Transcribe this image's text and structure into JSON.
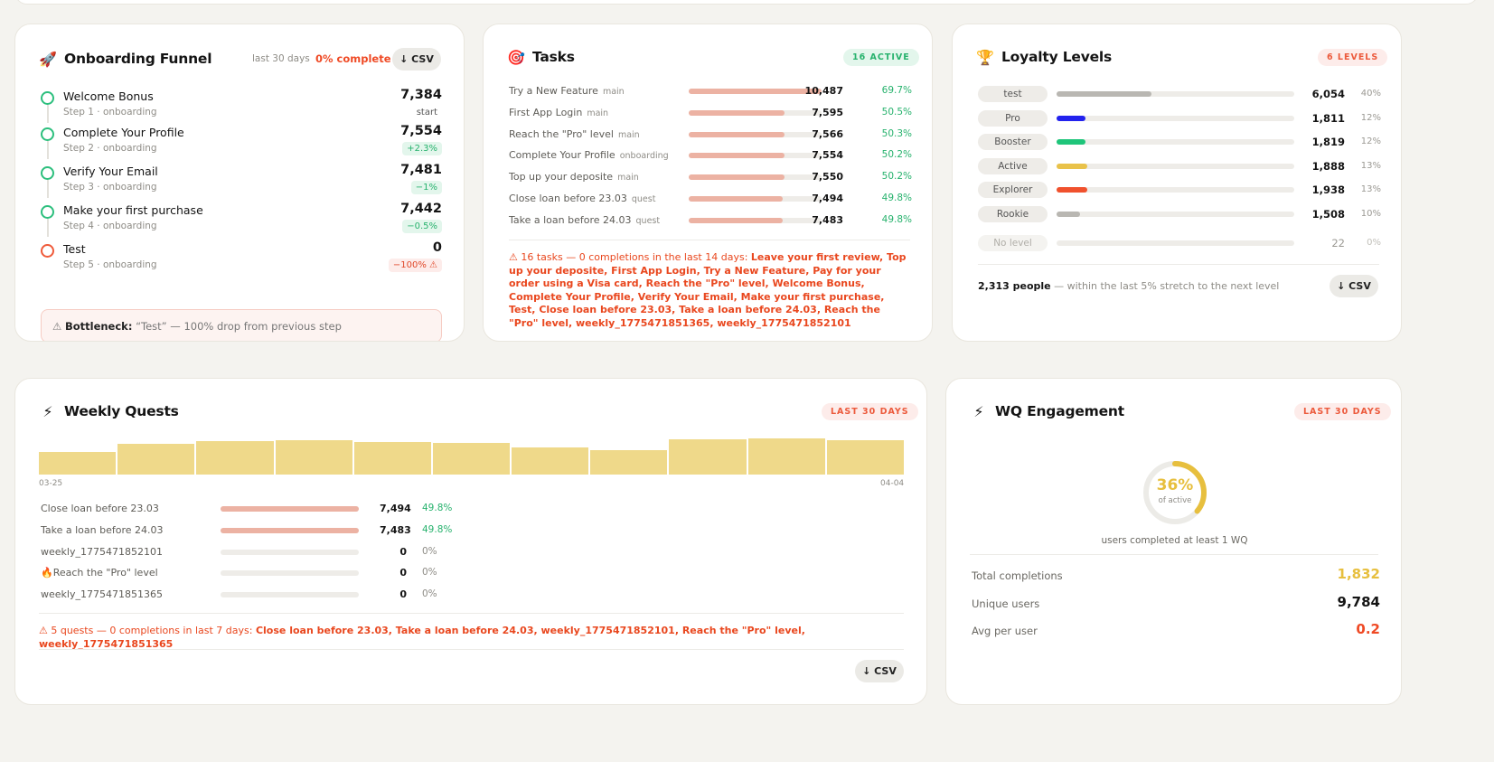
{
  "funnel": {
    "title": "Onboarding Funnel",
    "period": "last 30 days",
    "complete": "0% complete",
    "csv": "↓ CSV",
    "steps": [
      {
        "name": "Welcome Bonus",
        "sub": "Step 1 · onboarding",
        "value": "7,384",
        "delta": "start"
      },
      {
        "name": "Complete Your Profile",
        "sub": "Step 2 · onboarding",
        "value": "7,554",
        "delta": "+2.3%"
      },
      {
        "name": "Verify Your Email",
        "sub": "Step 3 · onboarding",
        "value": "7,481",
        "delta": "−1%"
      },
      {
        "name": "Make your first purchase",
        "sub": "Step 4 · onboarding",
        "value": "7,442",
        "delta": "−0.5%"
      },
      {
        "name": "Test",
        "sub": "Step 5 · onboarding",
        "value": "0",
        "delta": "−100% ⚠"
      }
    ],
    "bottleneck_label": "Bottleneck:",
    "bottleneck_text": "“Test” — 100% drop from previous step"
  },
  "tasks": {
    "title": "Tasks",
    "badge": "16 ACTIVE",
    "rows": [
      {
        "name": "Try a New Feature",
        "tag": "main",
        "value": "10,487",
        "pct": "69.7%",
        "fill": 1.0
      },
      {
        "name": "First App Login",
        "tag": "main",
        "value": "7,595",
        "pct": "50.5%",
        "fill": 0.72
      },
      {
        "name": "Reach the \"Pro\" level",
        "tag": "main",
        "value": "7,566",
        "pct": "50.3%",
        "fill": 0.72
      },
      {
        "name": "Complete Your Profile",
        "tag": "onboarding",
        "value": "7,554",
        "pct": "50.2%",
        "fill": 0.72
      },
      {
        "name": "Top up your deposite",
        "tag": "main",
        "value": "7,550",
        "pct": "50.2%",
        "fill": 0.72
      },
      {
        "name": "Close loan before 23.03",
        "tag": "quest",
        "value": "7,494",
        "pct": "49.8%",
        "fill": 0.71
      },
      {
        "name": "Take a loan before 24.03",
        "tag": "quest",
        "value": "7,483",
        "pct": "49.8%",
        "fill": 0.71
      }
    ],
    "warning_head": "⚠ 16 tasks — 0 completions in the last 14 days:",
    "warning_list": "Leave your first review, Top up your deposite, First App Login, Try a New Feature, Pay for your order using a Visa card, Reach the \"Pro\" level, Welcome Bonus, Complete Your Profile, Verify Your Email, Make your first purchase, Test, Close loan before 23.03, Take a loan before 24.03, Reach the \"Pro\" level, weekly_1775471851365, weekly_1775471852101"
  },
  "loyalty": {
    "title": "Loyalty Levels",
    "badge": "6 LEVELS",
    "levels": [
      {
        "name": "test",
        "value": "6,054",
        "pct": "40%",
        "fill": 0.4,
        "color": "#b9b7b2"
      },
      {
        "name": "Pro",
        "value": "1,811",
        "pct": "12%",
        "fill": 0.12,
        "color": "#2222ee"
      },
      {
        "name": "Booster",
        "value": "1,819",
        "pct": "12%",
        "fill": 0.12,
        "color": "#1fc57a"
      },
      {
        "name": "Active",
        "value": "1,888",
        "pct": "13%",
        "fill": 0.13,
        "color": "#e9c24a"
      },
      {
        "name": "Explorer",
        "value": "1,938",
        "pct": "13%",
        "fill": 0.13,
        "color": "#f0512d"
      },
      {
        "name": "Rookie",
        "value": "1,508",
        "pct": "10%",
        "fill": 0.1,
        "color": "#b9b7b2"
      },
      {
        "name": "No level",
        "value": "22",
        "pct": "0%",
        "fill": 0,
        "color": "#b9b7b2"
      }
    ],
    "people": "2,313 people",
    "people_note": "— within the last 5% stretch to the next level",
    "csv": "↓ CSV"
  },
  "weekly": {
    "title": "Weekly Quests",
    "badge": "LAST 30 DAYS",
    "x_start": "03-25",
    "x_end": "04-04",
    "quests": [
      {
        "name": "Close loan before 23.03",
        "value": "7,494",
        "pct": "49.8%",
        "fill": 1.0
      },
      {
        "name": "Take a loan before 24.03",
        "value": "7,483",
        "pct": "49.8%",
        "fill": 1.0
      },
      {
        "name": "weekly_1775471852101",
        "value": "0",
        "pct": "0%",
        "fill": 0
      },
      {
        "name": "Reach the \"Pro\" level",
        "value": "0",
        "pct": "0%",
        "fill": 0,
        "icon": "🔥"
      },
      {
        "name": "weekly_1775471851365",
        "value": "0",
        "pct": "0%",
        "fill": 0
      }
    ],
    "warning_head": "⚠ 5 quests — 0 completions in last 7 days:",
    "warning_list": "Close loan before 23.03, Take a loan before 24.03, weekly_1775471852101, Reach the \"Pro\" level, weekly_1775471851365",
    "csv": "↓ CSV"
  },
  "chart_data": {
    "type": "bar",
    "categories": [
      "03-25",
      "",
      "",
      "",
      "",
      "",
      "",
      "",
      "",
      "",
      "04-04"
    ],
    "values": [
      0.62,
      0.86,
      0.92,
      0.95,
      0.9,
      0.88,
      0.76,
      0.68,
      0.97,
      1.0,
      0.96
    ],
    "title": "",
    "xlabel": "",
    "ylabel": ""
  },
  "engagement": {
    "title": "WQ Engagement",
    "badge": "LAST 30 DAYS",
    "ring_pct": "36%",
    "ring_value": 0.36,
    "ring_sub": "of active",
    "caption": "users completed at least 1 WQ",
    "stats": [
      {
        "label": "Total completions",
        "value": "1,832",
        "color": "#e7bf3e"
      },
      {
        "label": "Unique users",
        "value": "9,784",
        "color": "#141414"
      },
      {
        "label": "Avg per user",
        "value": "0.2",
        "color": "#ef4a25"
      }
    ]
  },
  "colors": {
    "accent_red": "#ef4a25",
    "accent_green": "#27b26d",
    "accent_yellow": "#e7bf3e",
    "bar_salmon": "#ecb2a3"
  }
}
